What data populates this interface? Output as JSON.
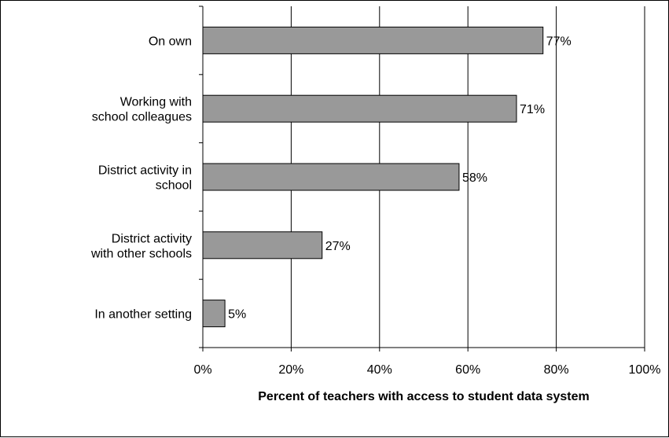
{
  "chart_data": {
    "type": "bar",
    "orientation": "horizontal",
    "categories": [
      [
        "On own"
      ],
      [
        "Working with",
        "school colleagues"
      ],
      [
        "District activity in",
        "school"
      ],
      [
        "District activity",
        "with other schools"
      ],
      [
        "In another setting"
      ]
    ],
    "values": [
      77,
      71,
      58,
      27,
      5
    ],
    "value_labels": [
      "77%",
      "71%",
      "58%",
      "27%",
      "5%"
    ],
    "xlabel": "Percent of teachers with access to student data system",
    "xlim": [
      0,
      100
    ],
    "xticks": [
      0,
      20,
      40,
      60,
      80,
      100
    ],
    "xtick_labels": [
      "0%",
      "20%",
      "40%",
      "60%",
      "80%",
      "100%"
    ],
    "grid": "vertical",
    "legend": "none",
    "colors": {
      "bar_fill": "#999999",
      "bar_stroke": "#000000",
      "grid": "#000000"
    }
  }
}
